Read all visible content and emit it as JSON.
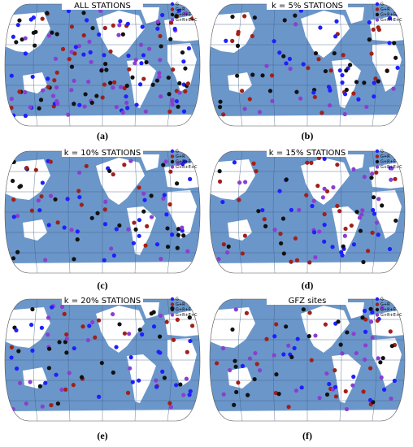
{
  "panels": [
    {
      "title": "ALL STATIONS",
      "label": "(a)",
      "legend": [
        "G",
        "G+R",
        "G+R+E",
        "G+R+E+C"
      ]
    },
    {
      "title": "k = 5% STATIONS",
      "label": "(b)",
      "legend": [
        "G",
        "G+R",
        "G+R+E",
        "G+R+E+C"
      ]
    },
    {
      "title": "k = 10% STATIONS",
      "label": "(c)",
      "legend": [
        "G",
        "G+R",
        "G+R+E",
        "G+R+E+C"
      ]
    },
    {
      "title": "k = 15% STATIONS",
      "label": "(d)",
      "legend": [
        "G",
        "G+R",
        "G+R+E",
        "G+R+E+C"
      ]
    },
    {
      "title": "k = 20% STATIONS",
      "label": "(e)",
      "legend": [
        "G",
        "G+R",
        "G+R+E",
        "G+R+E+C"
      ]
    },
    {
      "title": "GFZ sites",
      "label": "(f)",
      "legend": [
        "G",
        "G+R",
        "G+R+E",
        "G+R+E+C"
      ]
    }
  ]
}
